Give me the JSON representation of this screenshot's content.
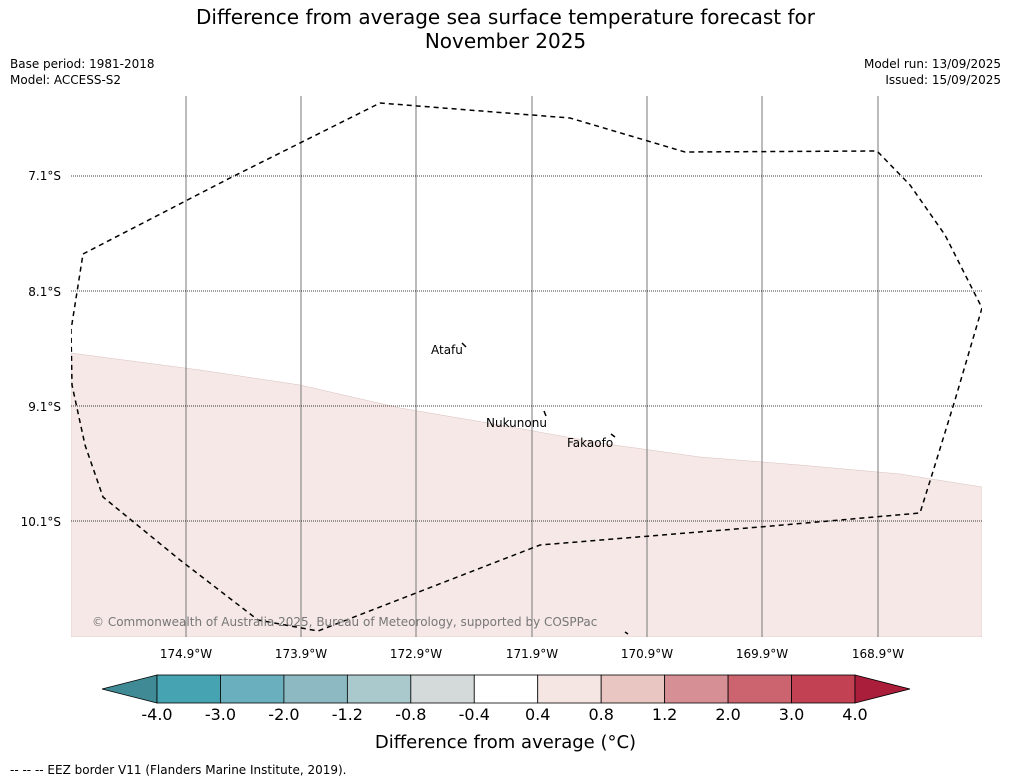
{
  "header": {
    "title_line1": "Difference from average sea surface temperature forecast for",
    "title_line2": "November 2025",
    "base_period": "Base period: 1981-2018",
    "model": "Model: ACCESS-S2",
    "model_run": "Model run: 13/09/2025",
    "issued": "Issued: 15/09/2025"
  },
  "map": {
    "latitude_labels": [
      "7.1°S",
      "8.1°S",
      "9.1°S",
      "10.1°S"
    ],
    "longitude_labels": [
      "174.9°W",
      "173.9°W",
      "172.9°W",
      "171.9°W",
      "170.9°W",
      "169.9°W",
      "168.9°W"
    ],
    "places": [
      {
        "name": "Atafu"
      },
      {
        "name": "Nukunonu"
      },
      {
        "name": "Fakaofo"
      }
    ],
    "copyright": "© Commonwealth of Australia 2025, Bureau of Meteorology, supported by COSPPac",
    "anomaly_fill_color": "#f5e8e6",
    "eez_line_style": "dashed"
  },
  "colorbar": {
    "ticks": [
      "-4.0",
      "-3.0",
      "-2.0",
      "-1.2",
      "-0.8",
      "-0.4",
      "0.4",
      "0.8",
      "1.2",
      "2.0",
      "3.0",
      "4.0"
    ],
    "colors": [
      "#3f8a94",
      "#46a3b2",
      "#6aafbd",
      "#8cb9c2",
      "#a9c9cc",
      "#d3dad9",
      "#ffffff",
      "#f5e5e3",
      "#e9c6c2",
      "#d68f95",
      "#cc6470",
      "#c24254",
      "#aa1d3b"
    ],
    "title": "Difference from average (°C)"
  },
  "footer": {
    "legend_text": "--  --  -- EEZ border V11 (Flanders Marine Institute, 2019)."
  }
}
